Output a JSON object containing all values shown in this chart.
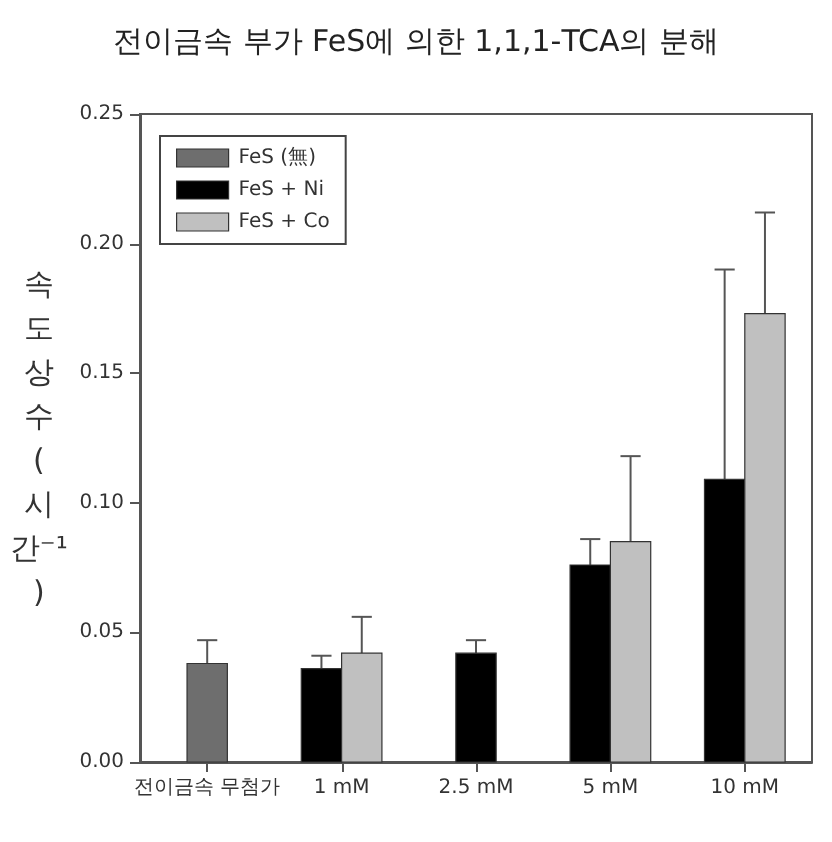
{
  "chart_data": {
    "type": "bar",
    "title": "전이금속 부가 FeS에 의한 1,1,1-TCA의 분해",
    "ylabel": "속도 상수(시간⁻¹)",
    "categories": [
      "전이금속 무첨가",
      "1 mM",
      "2.5 mM",
      "5 mM",
      "10 mM"
    ],
    "series": [
      {
        "name": "FeS (無)",
        "color": "#6e6e6e",
        "values": [
          0.038,
          null,
          null,
          null,
          null
        ],
        "errors": [
          [
            0.038,
            0.047
          ],
          null,
          null,
          null,
          null
        ]
      },
      {
        "name": "FeS + Ni",
        "color": "#000000",
        "values": [
          null,
          0.036,
          0.042,
          0.076,
          0.109
        ],
        "errors": [
          null,
          [
            0.036,
            0.041
          ],
          [
            0.042,
            0.047
          ],
          [
            0.076,
            0.086
          ],
          [
            0.109,
            0.19
          ]
        ]
      },
      {
        "name": "FeS + Co",
        "color": "#c0c0c0",
        "values": [
          null,
          0.042,
          null,
          0.085,
          0.173
        ],
        "errors": [
          null,
          [
            0.042,
            0.056
          ],
          null,
          [
            0.085,
            0.118
          ],
          [
            0.173,
            0.212
          ]
        ]
      }
    ],
    "ylim": [
      0,
      0.25
    ],
    "yticks": [
      {
        "value": 0,
        "label": "0.00"
      },
      0.05,
      {
        "value": 0.1,
        "label": "0.10"
      },
      0.15,
      {
        "value": 0.2,
        "label": "0.20"
      },
      0.25
    ],
    "grid": false,
    "legend": "top left"
  }
}
